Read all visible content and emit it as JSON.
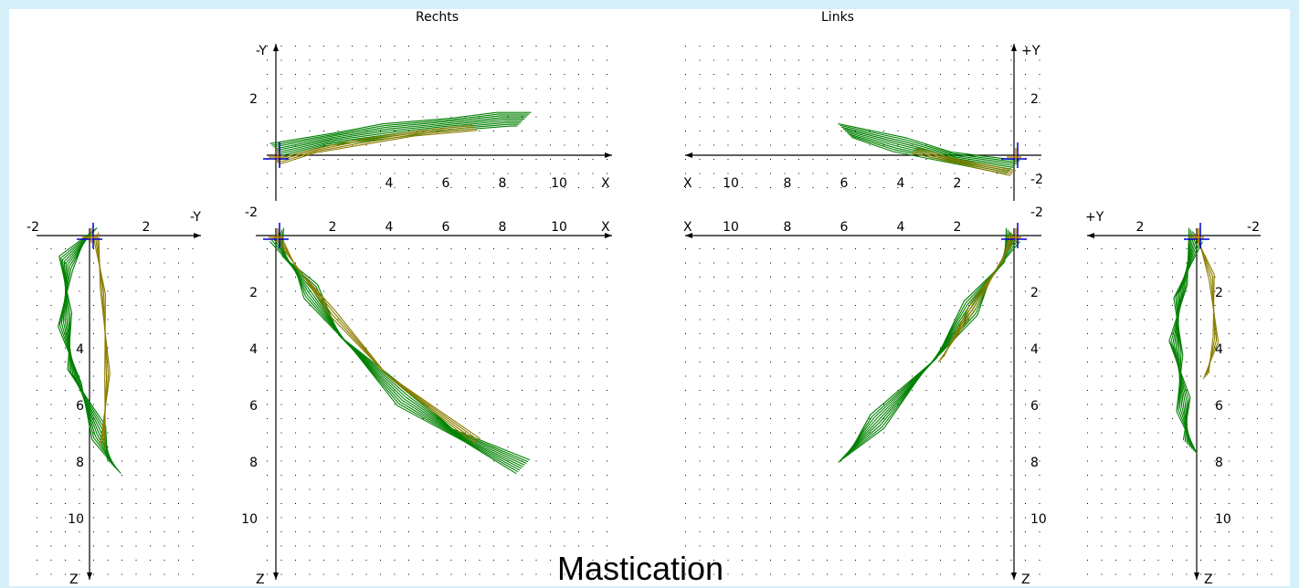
{
  "titles": {
    "right": "Rechts",
    "left": "Links"
  },
  "caption": "Mastication",
  "colors": {
    "background": "#d6f0fa",
    "trace_green": "#008000",
    "trace_olive": "#8b7d00",
    "axis": "#000000",
    "origin_marker": "#0000cc",
    "origin_cross": "#c08000",
    "grid_dot": "#000000"
  },
  "chart_data": [
    {
      "id": "right-sagittal-top",
      "type": "line",
      "title": "Rechts",
      "x_axis_label": "X",
      "y_axis_label": "-Y",
      "x_ticks": [
        "4",
        "6",
        "8",
        "10"
      ],
      "y_ticks": [
        "2",
        "-2"
      ],
      "xlim": [
        0,
        11
      ],
      "ylim": [
        -2,
        4
      ],
      "grid": true,
      "series": [
        {
          "color": "green",
          "x": [
            0,
            2,
            4,
            6,
            8,
            8.8
          ],
          "y": [
            0.2,
            0.6,
            0.9,
            1.1,
            1.3,
            1.3
          ]
        },
        {
          "color": "olive",
          "x": [
            0,
            1.5,
            3,
            5,
            7
          ],
          "y": [
            -0.2,
            0.2,
            0.5,
            0.8,
            1.0
          ]
        }
      ]
    },
    {
      "id": "right-frontal",
      "type": "line",
      "x_axis_label": "-Y",
      "y_axis_label": "Z",
      "x_ticks": [
        "-2",
        "2"
      ],
      "y_ticks": [
        "4",
        "6",
        "8",
        "10"
      ],
      "xlim": [
        -2,
        4
      ],
      "ylim": [
        0,
        11
      ],
      "grid": true,
      "series": [
        {
          "color": "green",
          "x": [
            0,
            -0.8,
            -0.9,
            -0.5,
            0.3,
            0.9
          ],
          "y": [
            0,
            1,
            3,
            5,
            7,
            8.2
          ]
        },
        {
          "color": "olive",
          "x": [
            0.2,
            0.5,
            0.6,
            0.5
          ],
          "y": [
            0,
            2,
            5,
            7.5
          ]
        }
      ]
    },
    {
      "id": "right-sagittal-bottom",
      "type": "line",
      "x_axis_label": "X",
      "y_axis_label": "Z",
      "x_ticks": [
        "2",
        "4",
        "6",
        "8",
        "10"
      ],
      "y_ticks": [
        "2",
        "4",
        "6",
        "8",
        "10"
      ],
      "xlim": [
        0,
        11
      ],
      "ylim": [
        0,
        11
      ],
      "grid": true,
      "series": [
        {
          "color": "green",
          "x": [
            0,
            0.5,
            1.2,
            2.5,
            4.5,
            6.5,
            8.7
          ],
          "y": [
            0,
            1,
            2,
            3.8,
            5.8,
            7.1,
            8.2
          ]
        },
        {
          "color": "olive",
          "x": [
            0,
            0.8,
            2,
            4,
            7.1
          ],
          "y": [
            0,
            1.2,
            2.8,
            5,
            7.3
          ]
        }
      ]
    },
    {
      "id": "left-sagittal-top",
      "type": "line",
      "title": "Links",
      "x_axis_label": "X",
      "y_axis_label": "+Y",
      "x_ticks": [
        "10",
        "8",
        "6",
        "4",
        "2"
      ],
      "y_ticks": [
        "2",
        "-2"
      ],
      "xlim": [
        11,
        0
      ],
      "ylim": [
        -2,
        4
      ],
      "grid": true,
      "series": [
        {
          "color": "green",
          "x": [
            0,
            2,
            4,
            6
          ],
          "y": [
            -0.4,
            -0.1,
            0.4,
            0.9
          ]
        },
        {
          "color": "olive",
          "x": [
            0,
            2,
            3.5
          ],
          "y": [
            -0.6,
            -0.2,
            0.2
          ]
        }
      ]
    },
    {
      "id": "left-sagittal-bottom",
      "type": "line",
      "x_axis_label": "X",
      "y_axis_label": "Z",
      "x_ticks": [
        "10",
        "8",
        "6",
        "4",
        "2"
      ],
      "y_ticks": [
        "-2",
        "2",
        "4",
        "6",
        "8",
        "10"
      ],
      "xlim": [
        11,
        0
      ],
      "ylim": [
        0,
        11
      ],
      "grid": true,
      "series": [
        {
          "color": "green",
          "x": [
            0,
            0.6,
            1.5,
            3,
            4.8,
            6
          ],
          "y": [
            0,
            1.2,
            2.6,
            4.6,
            6.6,
            7.8
          ]
        },
        {
          "color": "olive",
          "x": [
            0,
            0.5,
            1.4,
            2.6
          ],
          "y": [
            0,
            1,
            2.5,
            4.4
          ]
        }
      ]
    },
    {
      "id": "left-frontal",
      "type": "line",
      "x_axis_label": "+Y",
      "y_axis_label": "Z",
      "x_ticks": [
        "2",
        "-2"
      ],
      "y_ticks": [
        "2",
        "4",
        "6",
        "8",
        "10"
      ],
      "xlim": [
        4,
        -2
      ],
      "ylim": [
        0,
        11
      ],
      "grid": true,
      "series": [
        {
          "color": "green",
          "x": [
            0,
            0.6,
            0.7,
            0.5,
            0.2
          ],
          "y": [
            0,
            2,
            4,
            6,
            7.5
          ]
        },
        {
          "color": "olive",
          "x": [
            0,
            -0.5,
            -0.7,
            -0.3
          ],
          "y": [
            0,
            1.5,
            3.7,
            5
          ]
        }
      ]
    }
  ]
}
